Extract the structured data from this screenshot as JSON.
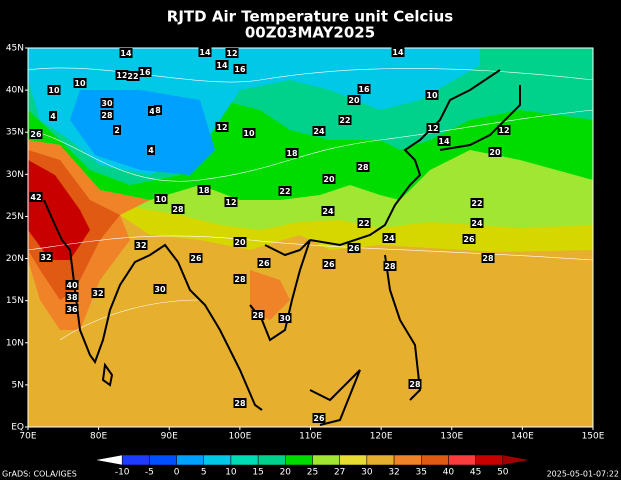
{
  "header": {
    "title": "RJTD Air Temperature unit Celcius",
    "subtitle": "00Z03MAY2025"
  },
  "axes": {
    "lon_labels": [
      "70E",
      "80E",
      "90E",
      "100E",
      "110E",
      "120E",
      "130E",
      "140E",
      "150E"
    ],
    "lat_labels": [
      "45N",
      "40N",
      "35N",
      "30N",
      "25N",
      "20N",
      "15N",
      "10N",
      "5N",
      "EQ"
    ]
  },
  "colorbar": {
    "labels": [
      "-10",
      "-5",
      "0",
      "5",
      "10",
      "15",
      "20",
      "25",
      "27",
      "30",
      "32",
      "35",
      "40",
      "45",
      "50"
    ],
    "colors": [
      "#ffffff",
      "#1e3cff",
      "#0050ff",
      "#00a0ff",
      "#00c8e6",
      "#00dcb4",
      "#00d28c",
      "#00dc00",
      "#a0e632",
      "#e6dc32",
      "#e6af2d",
      "#f08228",
      "#e05a14",
      "#fa3c3c",
      "#c80000",
      "#a00000"
    ]
  },
  "contour_labels": [
    "14",
    "14",
    "12",
    "14",
    "16",
    "12",
    "22",
    "16",
    "10",
    "10",
    "30",
    "28",
    "4",
    "8",
    "4",
    "2",
    "26",
    "4",
    "12",
    "10",
    "24",
    "22",
    "18",
    "28",
    "20",
    "18",
    "12",
    "10",
    "28",
    "22",
    "24",
    "22",
    "26",
    "24",
    "32",
    "32",
    "26",
    "20",
    "26",
    "26",
    "28",
    "28",
    "30",
    "32",
    "40",
    "38",
    "36",
    "28",
    "30",
    "28",
    "28",
    "26",
    "42",
    "22",
    "24",
    "26",
    "28",
    "12",
    "20",
    "14",
    "12",
    "20",
    "16",
    "10",
    "14"
  ],
  "footer": {
    "left": "GrADS: COLA/IGES",
    "right": "2025-05-01-07:22"
  }
}
